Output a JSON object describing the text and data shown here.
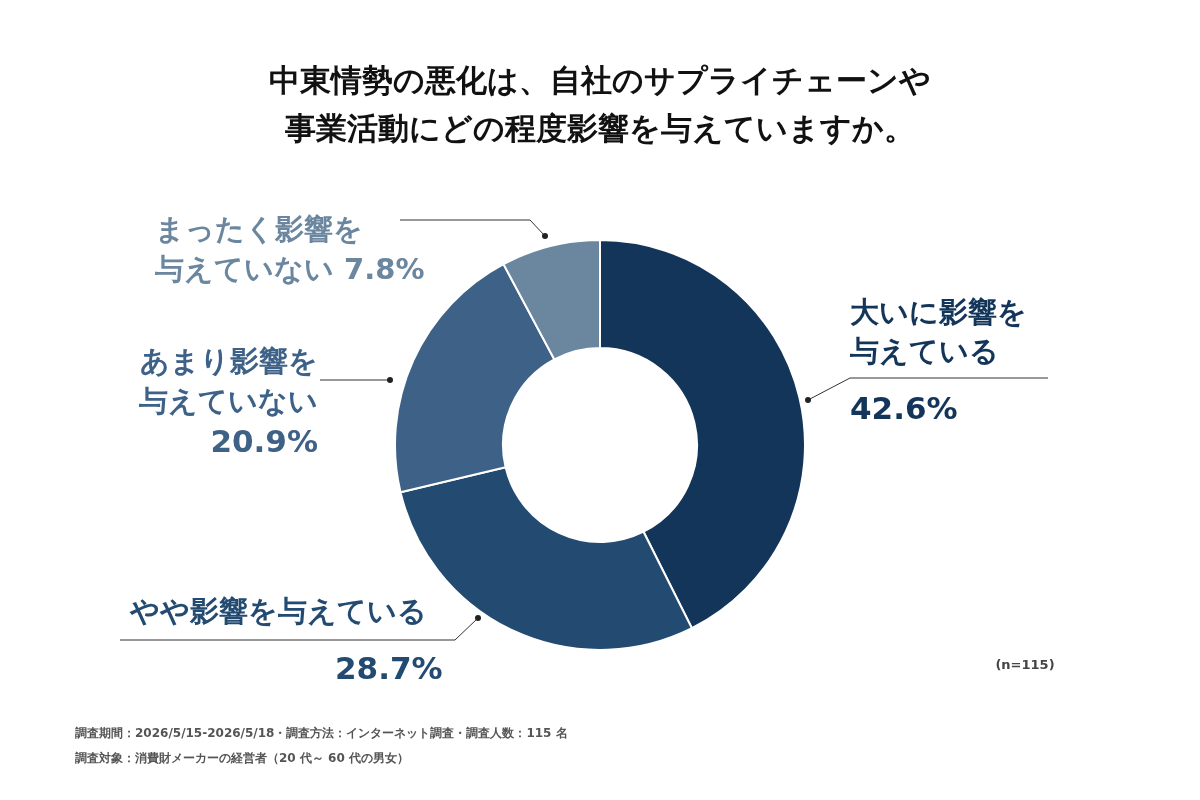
{
  "chart_data": {
    "type": "donut",
    "title": "中東情勢の悪化は、自社のサプライチェーンや事業活動にどの程度影響を与えていますか。",
    "categories": [
      "大いに影響を与えている",
      "やや影響を与えている",
      "あまり影響を与えていない",
      "まったく影響を与えていない"
    ],
    "values": [
      42.6,
      28.7,
      20.9,
      7.8
    ],
    "value_labels": [
      "42.6%",
      "28.7%",
      "20.9%",
      "7.8%"
    ],
    "colors": [
      "#13355a",
      "#234a70",
      "#3e6287",
      "#6b879f"
    ],
    "annotations": [
      "(n=115)",
      "調査期間：2026/5/15-2026/5/18・調査方法：インターネット調査・調査人数：115 名",
      "調査対象：消費財メーカーの経営者（20 代～ 60 代の男女）"
    ]
  }
}
